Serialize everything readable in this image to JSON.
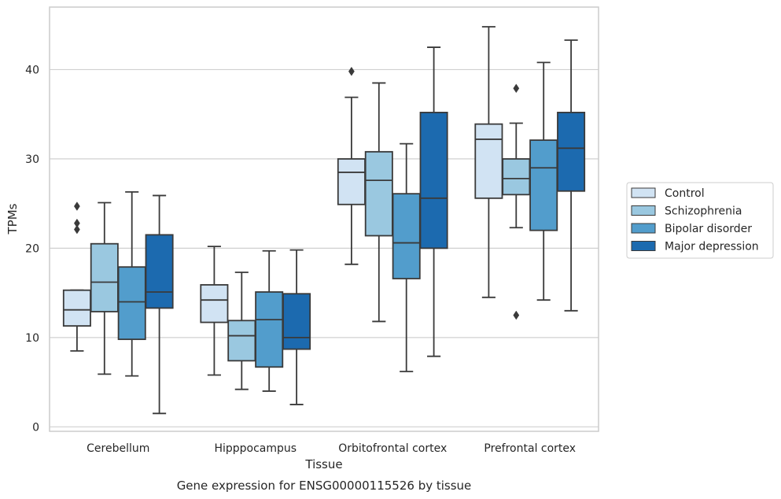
{
  "caption": "Gene expression for ENSG00000115526 by tissue",
  "colors": {
    "Control": "#d1e3f3",
    "Schizophrenia": "#9ac8e0",
    "Bipolar disorder": "#529dcc",
    "Major depression": "#1c6aaf",
    "edge": "#3a3a3a",
    "grid": "#d0d0d0",
    "frame": "#cccccc"
  },
  "chart_data": {
    "type": "box",
    "title": "",
    "xlabel": "Tissue",
    "ylabel": "TPMs",
    "ylim": [
      -0.5,
      47
    ],
    "yticks": [
      0,
      10,
      20,
      30,
      40
    ],
    "grid": "horizontal",
    "legend_position": "right",
    "categories": [
      "Cerebellum",
      "Hipppocampus",
      "Orbitofrontal cortex",
      "Prefrontal cortex"
    ],
    "series": [
      {
        "name": "Control",
        "boxes": [
          {
            "whislo": 8.5,
            "q1": 11.3,
            "med": 13.1,
            "q3": 15.3,
            "whishi": 15.3,
            "fliers": [
              22.1,
              22.8,
              24.7
            ]
          },
          {
            "whislo": 5.8,
            "q1": 11.7,
            "med": 14.2,
            "q3": 15.9,
            "whishi": 20.2,
            "fliers": []
          },
          {
            "whislo": 18.2,
            "q1": 24.9,
            "med": 28.5,
            "q3": 30.0,
            "whishi": 36.9,
            "fliers": [
              39.8
            ]
          },
          {
            "whislo": 14.5,
            "q1": 25.6,
            "med": 32.2,
            "q3": 33.9,
            "whishi": 44.8,
            "fliers": []
          }
        ]
      },
      {
        "name": "Schizophrenia",
        "boxes": [
          {
            "whislo": 5.9,
            "q1": 12.9,
            "med": 16.2,
            "q3": 20.5,
            "whishi": 25.1,
            "fliers": []
          },
          {
            "whislo": 4.2,
            "q1": 7.4,
            "med": 10.2,
            "q3": 11.9,
            "whishi": 17.3,
            "fliers": []
          },
          {
            "whislo": 11.8,
            "q1": 21.4,
            "med": 27.6,
            "q3": 30.8,
            "whishi": 38.5,
            "fliers": []
          },
          {
            "whislo": 22.3,
            "q1": 26.0,
            "med": 27.8,
            "q3": 30.0,
            "whishi": 34.0,
            "fliers": [
              12.5,
              37.9
            ]
          }
        ]
      },
      {
        "name": "Bipolar disorder",
        "boxes": [
          {
            "whislo": 5.7,
            "q1": 9.8,
            "med": 14.0,
            "q3": 17.9,
            "whishi": 26.3,
            "fliers": []
          },
          {
            "whislo": 4.0,
            "q1": 6.7,
            "med": 12.0,
            "q3": 15.1,
            "whishi": 19.7,
            "fliers": []
          },
          {
            "whislo": 6.2,
            "q1": 16.6,
            "med": 20.6,
            "q3": 26.1,
            "whishi": 31.7,
            "fliers": []
          },
          {
            "whislo": 14.2,
            "q1": 22.0,
            "med": 29.0,
            "q3": 32.1,
            "whishi": 40.8,
            "fliers": []
          }
        ]
      },
      {
        "name": "Major depression",
        "boxes": [
          {
            "whislo": 1.5,
            "q1": 13.3,
            "med": 15.1,
            "q3": 21.5,
            "whishi": 25.9,
            "fliers": []
          },
          {
            "whislo": 2.5,
            "q1": 8.7,
            "med": 10.0,
            "q3": 14.9,
            "whishi": 19.8,
            "fliers": []
          },
          {
            "whislo": 7.9,
            "q1": 20.0,
            "med": 25.6,
            "q3": 35.2,
            "whishi": 42.5,
            "fliers": []
          },
          {
            "whislo": 13.0,
            "q1": 26.4,
            "med": 31.2,
            "q3": 35.2,
            "whishi": 43.3,
            "fliers": []
          }
        ]
      }
    ]
  }
}
